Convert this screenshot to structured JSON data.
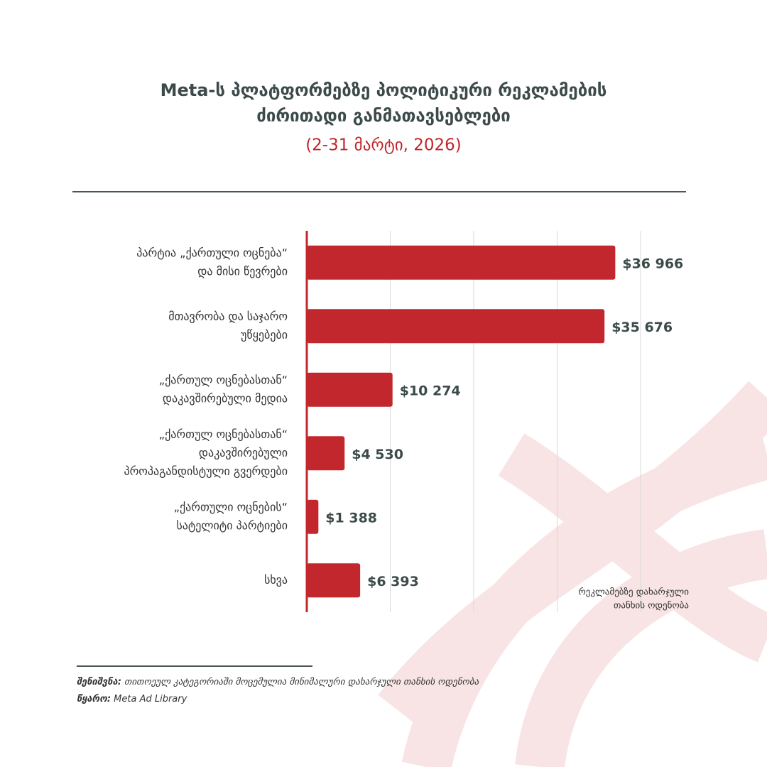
{
  "chart_data": {
    "type": "barh",
    "title": [
      "Meta-ს პლატფორმებზე პოლიტიკური რეკლამების",
      "ძირითადი განმათავსებლები"
    ],
    "subtitle": "(2-31 მარტი, 2026)",
    "categories": [
      [
        "პარტია „ქართული ოცნება“",
        "და მისი წევრები"
      ],
      [
        "მთავრობა და საჯარო",
        "უწყებები"
      ],
      [
        "„ქართულ ოცნებასთან“",
        "დაკავშირებული მედია"
      ],
      [
        "„ქართულ ოცნებასთან“",
        "დაკავშირებული",
        "პროპაგანდისტული გვერდები"
      ],
      [
        "„ქართული ოცნების“",
        "სატელიტი პარტიები"
      ],
      [
        "სხვა"
      ]
    ],
    "values": [
      36966,
      35676,
      10274,
      4530,
      1388,
      6393
    ],
    "value_labels": [
      "$36 966",
      "$35 676",
      "$10 274",
      "$4 530",
      "$1 388",
      "$6 393"
    ],
    "color": "#c1272d",
    "xlim": [
      0,
      40000
    ],
    "xticks": [
      0,
      10000,
      20000,
      30000,
      40000
    ],
    "grid": true,
    "x_label": [
      "რეკლამებზე დახარჯული",
      "თანხის ოდენობა"
    ],
    "note": {
      "label": "შენიშვნა:",
      "text": "თითოეულ კატეგორიაში მოცემულია მინიმალური დახარჯული თანხის ოდენობა"
    },
    "source": {
      "label": "წყარო:",
      "text": "Meta Ad Library"
    }
  }
}
